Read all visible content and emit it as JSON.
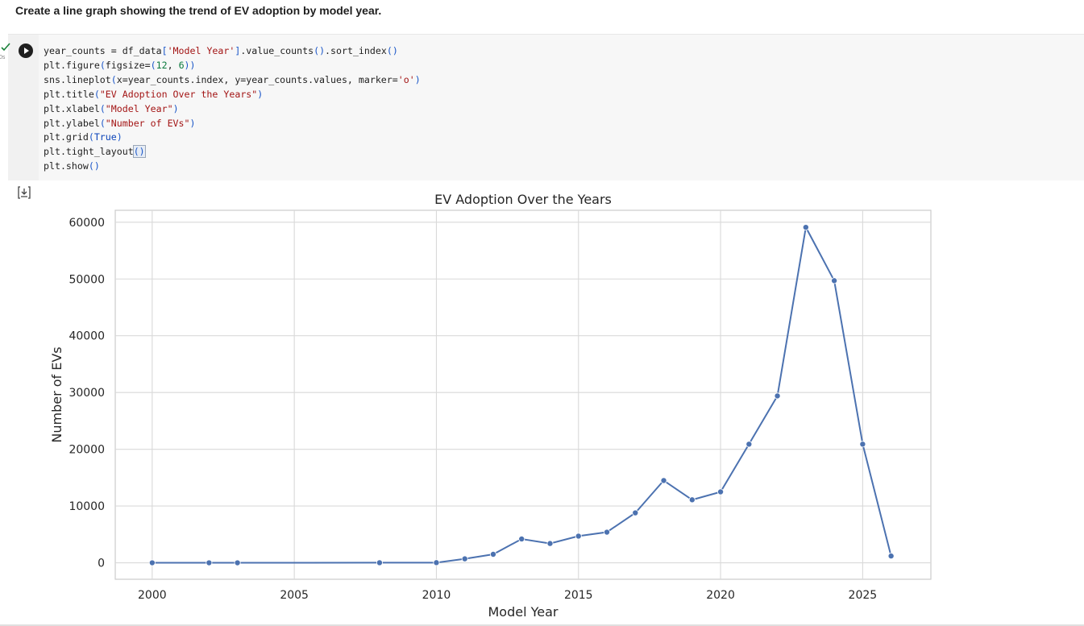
{
  "prompt": {
    "text": "Create a line graph showing the trend of EV adoption by model year."
  },
  "cell": {
    "run_icon": "play-icon",
    "status_icon": "check-icon",
    "exec_time": "0s",
    "output_icon": "output-toggle-icon",
    "code_lines": [
      "year_counts = df_data['Model Year'].value_counts().sort_index()",
      "plt.figure(figsize=(12, 6))",
      "sns.lineplot(x=year_counts.index, y=year_counts.values, marker='o')",
      "plt.title(\"EV Adoption Over the Years\")",
      "plt.xlabel(\"Model Year\")",
      "plt.ylabel(\"Number of EVs\")",
      "plt.grid(True)",
      "plt.tight_layout()",
      "plt.show()"
    ]
  },
  "chart_data": {
    "type": "line",
    "title": "EV Adoption Over the Years",
    "xlabel": "Model Year",
    "ylabel": "Number of EVs",
    "x": [
      2000,
      2002,
      2003,
      2008,
      2010,
      2011,
      2012,
      2013,
      2014,
      2015,
      2016,
      2017,
      2018,
      2019,
      2020,
      2021,
      2022,
      2023,
      2024,
      2025,
      2026
    ],
    "y": [
      5,
      5,
      5,
      20,
      30,
      700,
      1500,
      4200,
      3400,
      4700,
      5400,
      8800,
      14500,
      11100,
      12500,
      20900,
      29400,
      59100,
      49700,
      20900,
      1200
    ],
    "xticks": [
      "2000",
      "2005",
      "2010",
      "2015",
      "2020",
      "2025"
    ],
    "yticks": [
      "0",
      "10000",
      "20000",
      "30000",
      "40000",
      "50000",
      "60000"
    ],
    "xlim": [
      1998.7,
      2027.4
    ],
    "ylim": [
      -2900,
      62100
    ],
    "grid": true,
    "line_color": "#4c72b0",
    "grid_color": "#d9d9d9"
  }
}
